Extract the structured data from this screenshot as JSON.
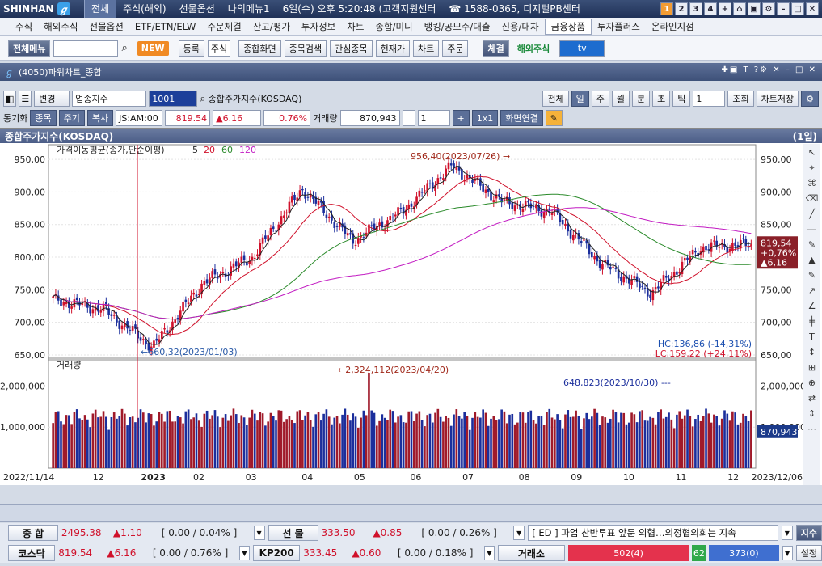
{
  "topbar": {
    "brand": "SHINHAN",
    "nav": [
      "전체",
      "주식(해외)",
      "선물옵션",
      "나의메뉴1",
      "6일(수) 오후 5:20:48 (고객지원센터",
      "☎ 1588-0365, 디지털PB센터",
      "☎ 02"
    ],
    "selected_nav": "전체",
    "page_buttons": [
      "1",
      "2",
      "3",
      "4",
      "+"
    ]
  },
  "menubar": {
    "items": [
      "주식",
      "해외주식",
      "선물옵션",
      "ETF/ETN/ELW",
      "주문체결",
      "잔고/평가",
      "투자정보",
      "차트",
      "종합/미니",
      "뱅킹/공모주/대출",
      "신용/대차",
      "금융상품",
      "투자플러스",
      "온라인지점"
    ],
    "selected": "금융상품"
  },
  "toolbar": {
    "all_menu": "전체메뉴",
    "new_badge": "NEW",
    "register": "등록",
    "category": "주식",
    "buttons": [
      "종합화면",
      "종목검색",
      "관심종목",
      "현재가",
      "차트",
      "주문"
    ],
    "exec": "체결",
    "overseas": "해외주식",
    "tv": "tv"
  },
  "window": {
    "title": "(4050)파워차트_종합"
  },
  "controls": {
    "change": "변경",
    "sector": "업종지수",
    "code": "1001",
    "index_name": "종합주가지수(KOSDAQ)",
    "period_buttons": [
      "전체",
      "일",
      "주",
      "월",
      "분",
      "초",
      "틱"
    ],
    "count": "1",
    "lookup": "조회",
    "save": "차트저장",
    "sync": "동기화",
    "tab_item": "종목",
    "tab_weekly": "주기",
    "tab_copy": "복사",
    "time": "JS:AM:00",
    "price": "819.54",
    "change_val": "▲6.16",
    "change_pct": "0.76%",
    "volume_label": "거래량",
    "volume": "870,943",
    "unit": "1",
    "ratio": "1x1",
    "link": "화면연결"
  },
  "chart_data": {
    "type": "candlestick",
    "title": "종합주가지수(KOSDAQ)",
    "period": "(1일)",
    "legend_price": "가격이동평균(종가,단순이평)",
    "ma_periods": [
      "5",
      "20",
      "60",
      "120"
    ],
    "ma_colors": {
      "5": "#222222",
      "20": "#d0112b",
      "60": "#2a8a2a",
      "120": "#c21bc2"
    },
    "x_labels": [
      "2022/11/14",
      "12",
      "2023",
      "02",
      "03",
      "04",
      "05",
      "06",
      "07",
      "08",
      "09",
      "10",
      "11",
      "12",
      "2023/12/06"
    ],
    "price_ylim": [
      650,
      960
    ],
    "price_ticks": [
      "950,00",
      "900,00",
      "850,00",
      "800,00",
      "750,00",
      "700,00",
      "650,00"
    ],
    "volume_ticks": [
      "2,000,000",
      "1,000,000"
    ],
    "volume_ylim": [
      0,
      2600000
    ],
    "volume_label": "거래량",
    "annotations": {
      "high": "956,40(2023/07/26)",
      "low": "660,32(2023/01/03)",
      "vol_high": "2,324,112(2023/04/20)",
      "vol_mark": "648,823(2023/10/30)",
      "hc": "HC:136,86 (-14,31%)",
      "lc": "LC:159,22 (+24,11%)"
    },
    "current": {
      "price": "819,54",
      "change": "+0,76%",
      "delta": "▲6,16",
      "volume": "870,943"
    },
    "key_points": [
      {
        "date": "2022/11/14",
        "close": 735
      },
      {
        "date": "2022/12",
        "close": 720
      },
      {
        "date": "2023/01/03",
        "close": 662
      },
      {
        "date": "2023/02",
        "close": 760
      },
      {
        "date": "2023/03",
        "close": 800
      },
      {
        "date": "2023/04",
        "close": 905
      },
      {
        "date": "2023/05",
        "close": 825
      },
      {
        "date": "2023/06",
        "close": 870
      },
      {
        "date": "2023/07/26",
        "close": 940
      },
      {
        "date": "2023/08",
        "close": 885
      },
      {
        "date": "2023/09",
        "close": 870
      },
      {
        "date": "2023/10",
        "close": 790
      },
      {
        "date": "2023/10/30",
        "close": 745
      },
      {
        "date": "2023/11",
        "close": 815
      },
      {
        "date": "2023/12/06",
        "close": 819.54
      }
    ],
    "grid": true,
    "zoom_count": "264"
  },
  "bottom": {
    "rows": [
      [
        {
          "name": "종  합",
          "val": "2495.38",
          "chg": "▲1.10",
          "pct": "[ 0.00 / 0.04% ]"
        },
        {
          "name": "선  물",
          "val": "333.50",
          "chg": "▲0.85",
          "pct": "[ 0.00 / 0.26% ]"
        }
      ],
      [
        {
          "name": "코스닥",
          "val": "819.54",
          "chg": "▲6.16",
          "pct": "[ 0.00 / 0.76% ]"
        },
        {
          "name": "KP200",
          "val": "333.45",
          "chg": "▲0.60",
          "pct": "[ 0.00 / 0.18% ]"
        }
      ]
    ],
    "news": "[ ED ] 파업 찬반투표 앞둔 의협…의정협의회는 지속",
    "news_btn": "지수",
    "exchange_label": "거래소",
    "up": "502(4)",
    "flat": "62",
    "down": "373(0)",
    "settings": "설정"
  }
}
